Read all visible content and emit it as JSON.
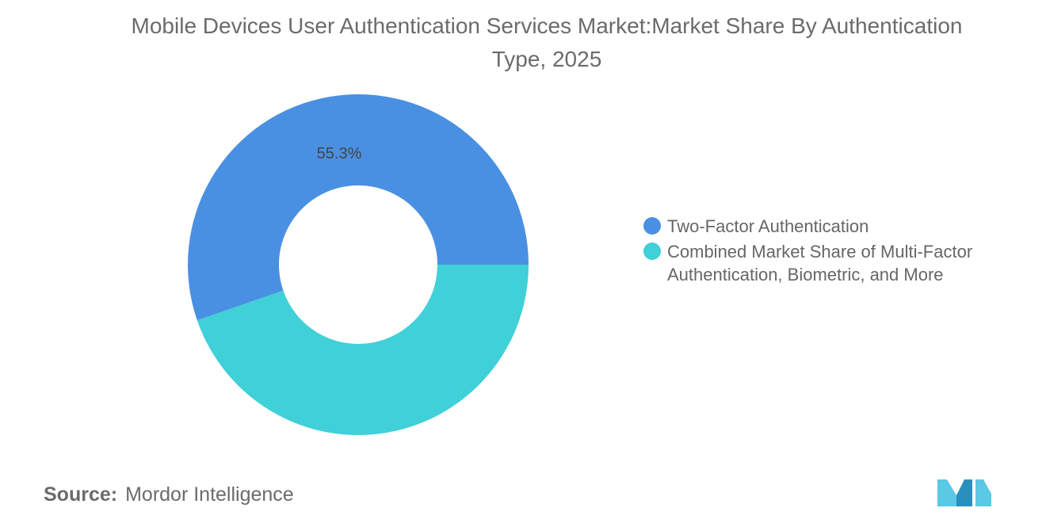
{
  "title": "Mobile Devices User Authentication Services Market:Market Share By Authentication Type, 2025",
  "source": {
    "label": "Source:",
    "name": "Mordor Intelligence"
  },
  "colors": {
    "background": "#ffffff",
    "series": [
      "#4a90e2",
      "#40d0d8"
    ],
    "logo": [
      "#5bc8e6",
      "#2a8fbf"
    ]
  },
  "chart_data": {
    "type": "pie",
    "variant": "donut",
    "title": "Mobile Devices User Authentication Services Market:Market Share By Authentication Type, 2025",
    "slices": [
      {
        "label": "Two-Factor Authentication",
        "value": 55.3,
        "data_label": "55.3%",
        "color": "#4a90e2"
      },
      {
        "label": "Combined Market Share of Multi-Factor Authentication, Biometric, and More",
        "value": 44.7,
        "data_label": "",
        "color": "#40d0d8"
      }
    ],
    "legend_position": "right"
  }
}
